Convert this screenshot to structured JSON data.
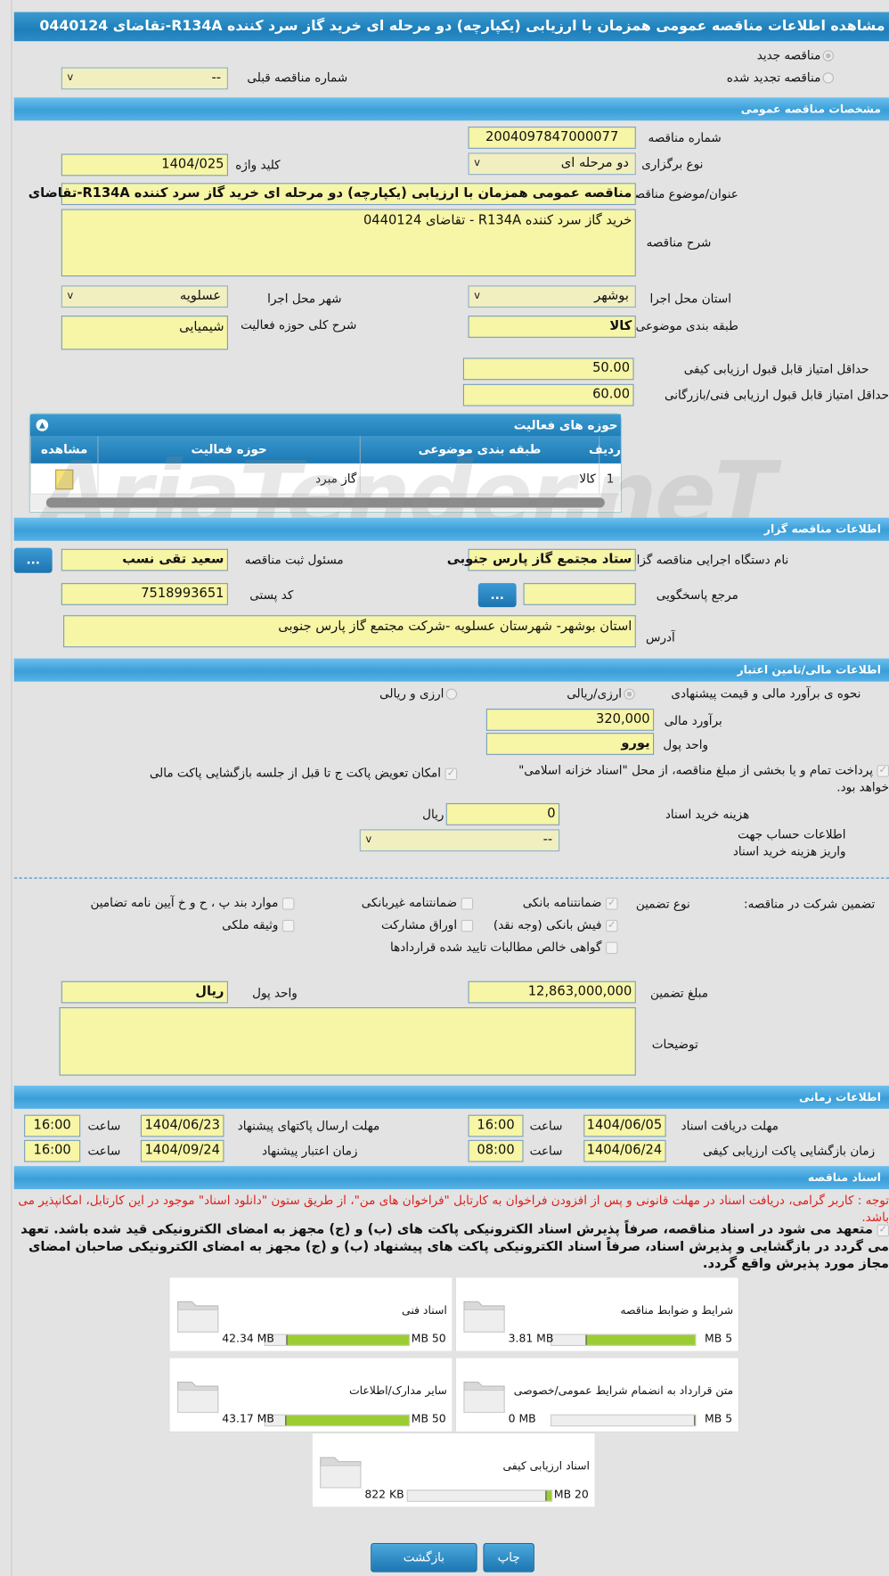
{
  "title": "مشاهده اطلاعات مناقصه عمومی همزمان با ارزیابی (یکپارچه) دو مرحله ای خرید گاز سرد کننده R134A-تقاضای 0440124",
  "radios": {
    "new": "مناقصه جدید",
    "renewed": "مناقصه تجدید شده",
    "prev_label": "شماره مناقصه قبلی",
    "prev_value": "--"
  },
  "general": {
    "header": "مشخصات مناقصه عمومی",
    "number_label": "شماره مناقصه",
    "number": "2004097847000077",
    "type_label": "نوع برگزاری",
    "type": "دو مرحله ای",
    "keyword_label": "کلید واژه",
    "keyword": "1404/025",
    "subject_label": "عنوان/موضوع مناقصه",
    "subject": "مناقصه عمومی همزمان با ارزیابی (یکپارچه) دو مرحله ای خرید گاز سرد کننده R134A-تقاضای",
    "desc_label": "شرح مناقصه",
    "desc": "خرید گاز سرد کننده R134A - تقاضای 0440124",
    "province_label": "استان محل اجرا",
    "province": "بوشهر",
    "city_label": "شهر محل اجرا",
    "city": "عسلویه",
    "category_label": "طبقه بندی موضوعی",
    "category": "کالا",
    "activity_label": "شرح کلی حوزه فعالیت",
    "activity": "شیمیایی",
    "min_quality_label": "حداقل امتیاز قابل قبول ارزیابی کیفی",
    "min_quality": "50.00",
    "min_tech_label": "حداقل امتیاز قابل قبول ارزیابی فنی/بازرگانی",
    "min_tech": "60.00"
  },
  "activity_grid": {
    "title": "حوزه های فعالیت",
    "columns": [
      "ردیف",
      "طبقه بندی موضوعی",
      "حوزه فعالیت",
      "مشاهده"
    ],
    "rows": [
      [
        "1",
        "کالا",
        "گاز مبرد"
      ]
    ]
  },
  "watermark": "AriaTender.neT",
  "organizer": {
    "header": "اطلاعات مناقصه گزار",
    "org_label": "نام دستگاه اجرایی مناقصه گزار",
    "org": "ستاد مجتمع گاز پارس جنوبی",
    "resp_label": "مسئول ثبت مناقصه",
    "resp": "سعید تقی نسب",
    "ref_label": "مرجع پاسخگویی",
    "ref": "",
    "postal_label": "کد پستی",
    "postal": "7518993651",
    "address_label": "آدرس",
    "address": "استان بوشهر- شهرستان عسلویه -شرکت مجتمع گاز پارس جنوبی",
    "more": "..."
  },
  "finance": {
    "header": "اطلاعات مالی/تامین اعتبار",
    "estimate_label": "نحوه ی برآورد مالی و قیمت پیشنهادی",
    "opt1": "ارزی/ریالی",
    "opt2": "ارزی و ریالی",
    "amount_label": "برآورد مالی",
    "amount": "320,000",
    "currency_label": "واحد پول",
    "currency": "یورو",
    "treasury": "پرداخت تمام و یا بخشی از مبلغ مناقصه، از محل \"اسناد خزانه اسلامی\" خواهد بود.",
    "swap": "امکان تعویض پاکت ج تا قبل از جلسه بازگشایی پاکت مالی",
    "doc_cost_label": "هزینه خرید اسناد",
    "doc_cost": "0",
    "rial": "ریال",
    "account_label": "اطلاعات حساب جهت واریز هزینه خرید اسناد",
    "account": "--"
  },
  "guarantee": {
    "label": "تضمین شرکت در مناقصه:",
    "type_label": "نوع تضمین",
    "options": [
      {
        "label": "ضمانتنامه بانکی",
        "checked": true
      },
      {
        "label": "ضمانتنامه غیربانکی",
        "checked": false
      },
      {
        "label": "موارد بند پ ، ح و خ آیین نامه تضامین",
        "checked": false
      },
      {
        "label": "فیش بانکی (وجه نقد)",
        "checked": true
      },
      {
        "label": "اوراق مشارکت",
        "checked": false
      },
      {
        "label": "وثیقه ملکی",
        "checked": false
      },
      {
        "label": "گواهی خالص مطالبات تایید شده قراردادها",
        "checked": false
      }
    ],
    "amount_label": "مبلغ تضمین",
    "amount": "12,863,000,000",
    "currency_label": "واحد پول",
    "currency": "ریال",
    "notes_label": "توضیحات",
    "notes": ""
  },
  "timing": {
    "header": "اطلاعات زمانی",
    "receive_label": "مهلت دریافت اسناد",
    "receive_date": "1404/06/05",
    "receive_time": "16:00",
    "send_label": "مهلت ارسال پاکتهای پیشنهاد",
    "send_date": "1404/06/23",
    "send_time": "16:00",
    "open_label": "زمان بازگشایی پاکت ارزیابی کیفی",
    "open_date": "1404/06/24",
    "open_time": "08:00",
    "valid_label": "زمان اعتبار پیشنهاد",
    "valid_date": "1404/09/24",
    "valid_time": "16:00",
    "time_label": "ساعت"
  },
  "docs": {
    "header": "اسناد مناقصه",
    "note": "توجه : کاربر گرامی، دریافت اسناد در مهلت قانونی و پس از افزودن فراخوان به کارتابل \"فراخوان های من\"، از طریق ستون \"دانلود اسناد\" موجود در این کارتابل، امکانپذیر می باشد.",
    "commit": "متعهد می شود در اسناد مناقصه، صرفاً پذیرش اسناد الکترونیکی پاکت های (ب) و (ج) مجهز به امضای الکترونیکی قید شده باشد. تعهد می گردد در بازگشایی و پذیرش اسناد، صرفاً اسناد الکترونیکی پاکت های پیشنهاد (ب) و (ج) مجهز به امضای الکترونیکی صاحبان امضای مجاز مورد پذیرش واقع گردد.",
    "files": [
      {
        "name": "شرایط و ضوابط مناقصه",
        "used": "3.81 MB",
        "max": "5 MB",
        "percent": 76
      },
      {
        "name": "اسناد فنی",
        "used": "42.34 MB",
        "max": "50 MB",
        "percent": 85
      },
      {
        "name": "متن قرارداد به انضمام شرایط عمومی/خصوصی",
        "used": "0 MB",
        "max": "5 MB",
        "percent": 0
      },
      {
        "name": "سایر مدارک/اطلاعات",
        "used": "43.17 MB",
        "max": "50 MB",
        "percent": 86
      },
      {
        "name": "اسناد ارزیابی کیفی",
        "used": "822 KB",
        "max": "20 MB",
        "percent": 4
      }
    ]
  },
  "buttons": {
    "back": "بازگشت",
    "print": "چاپ"
  }
}
